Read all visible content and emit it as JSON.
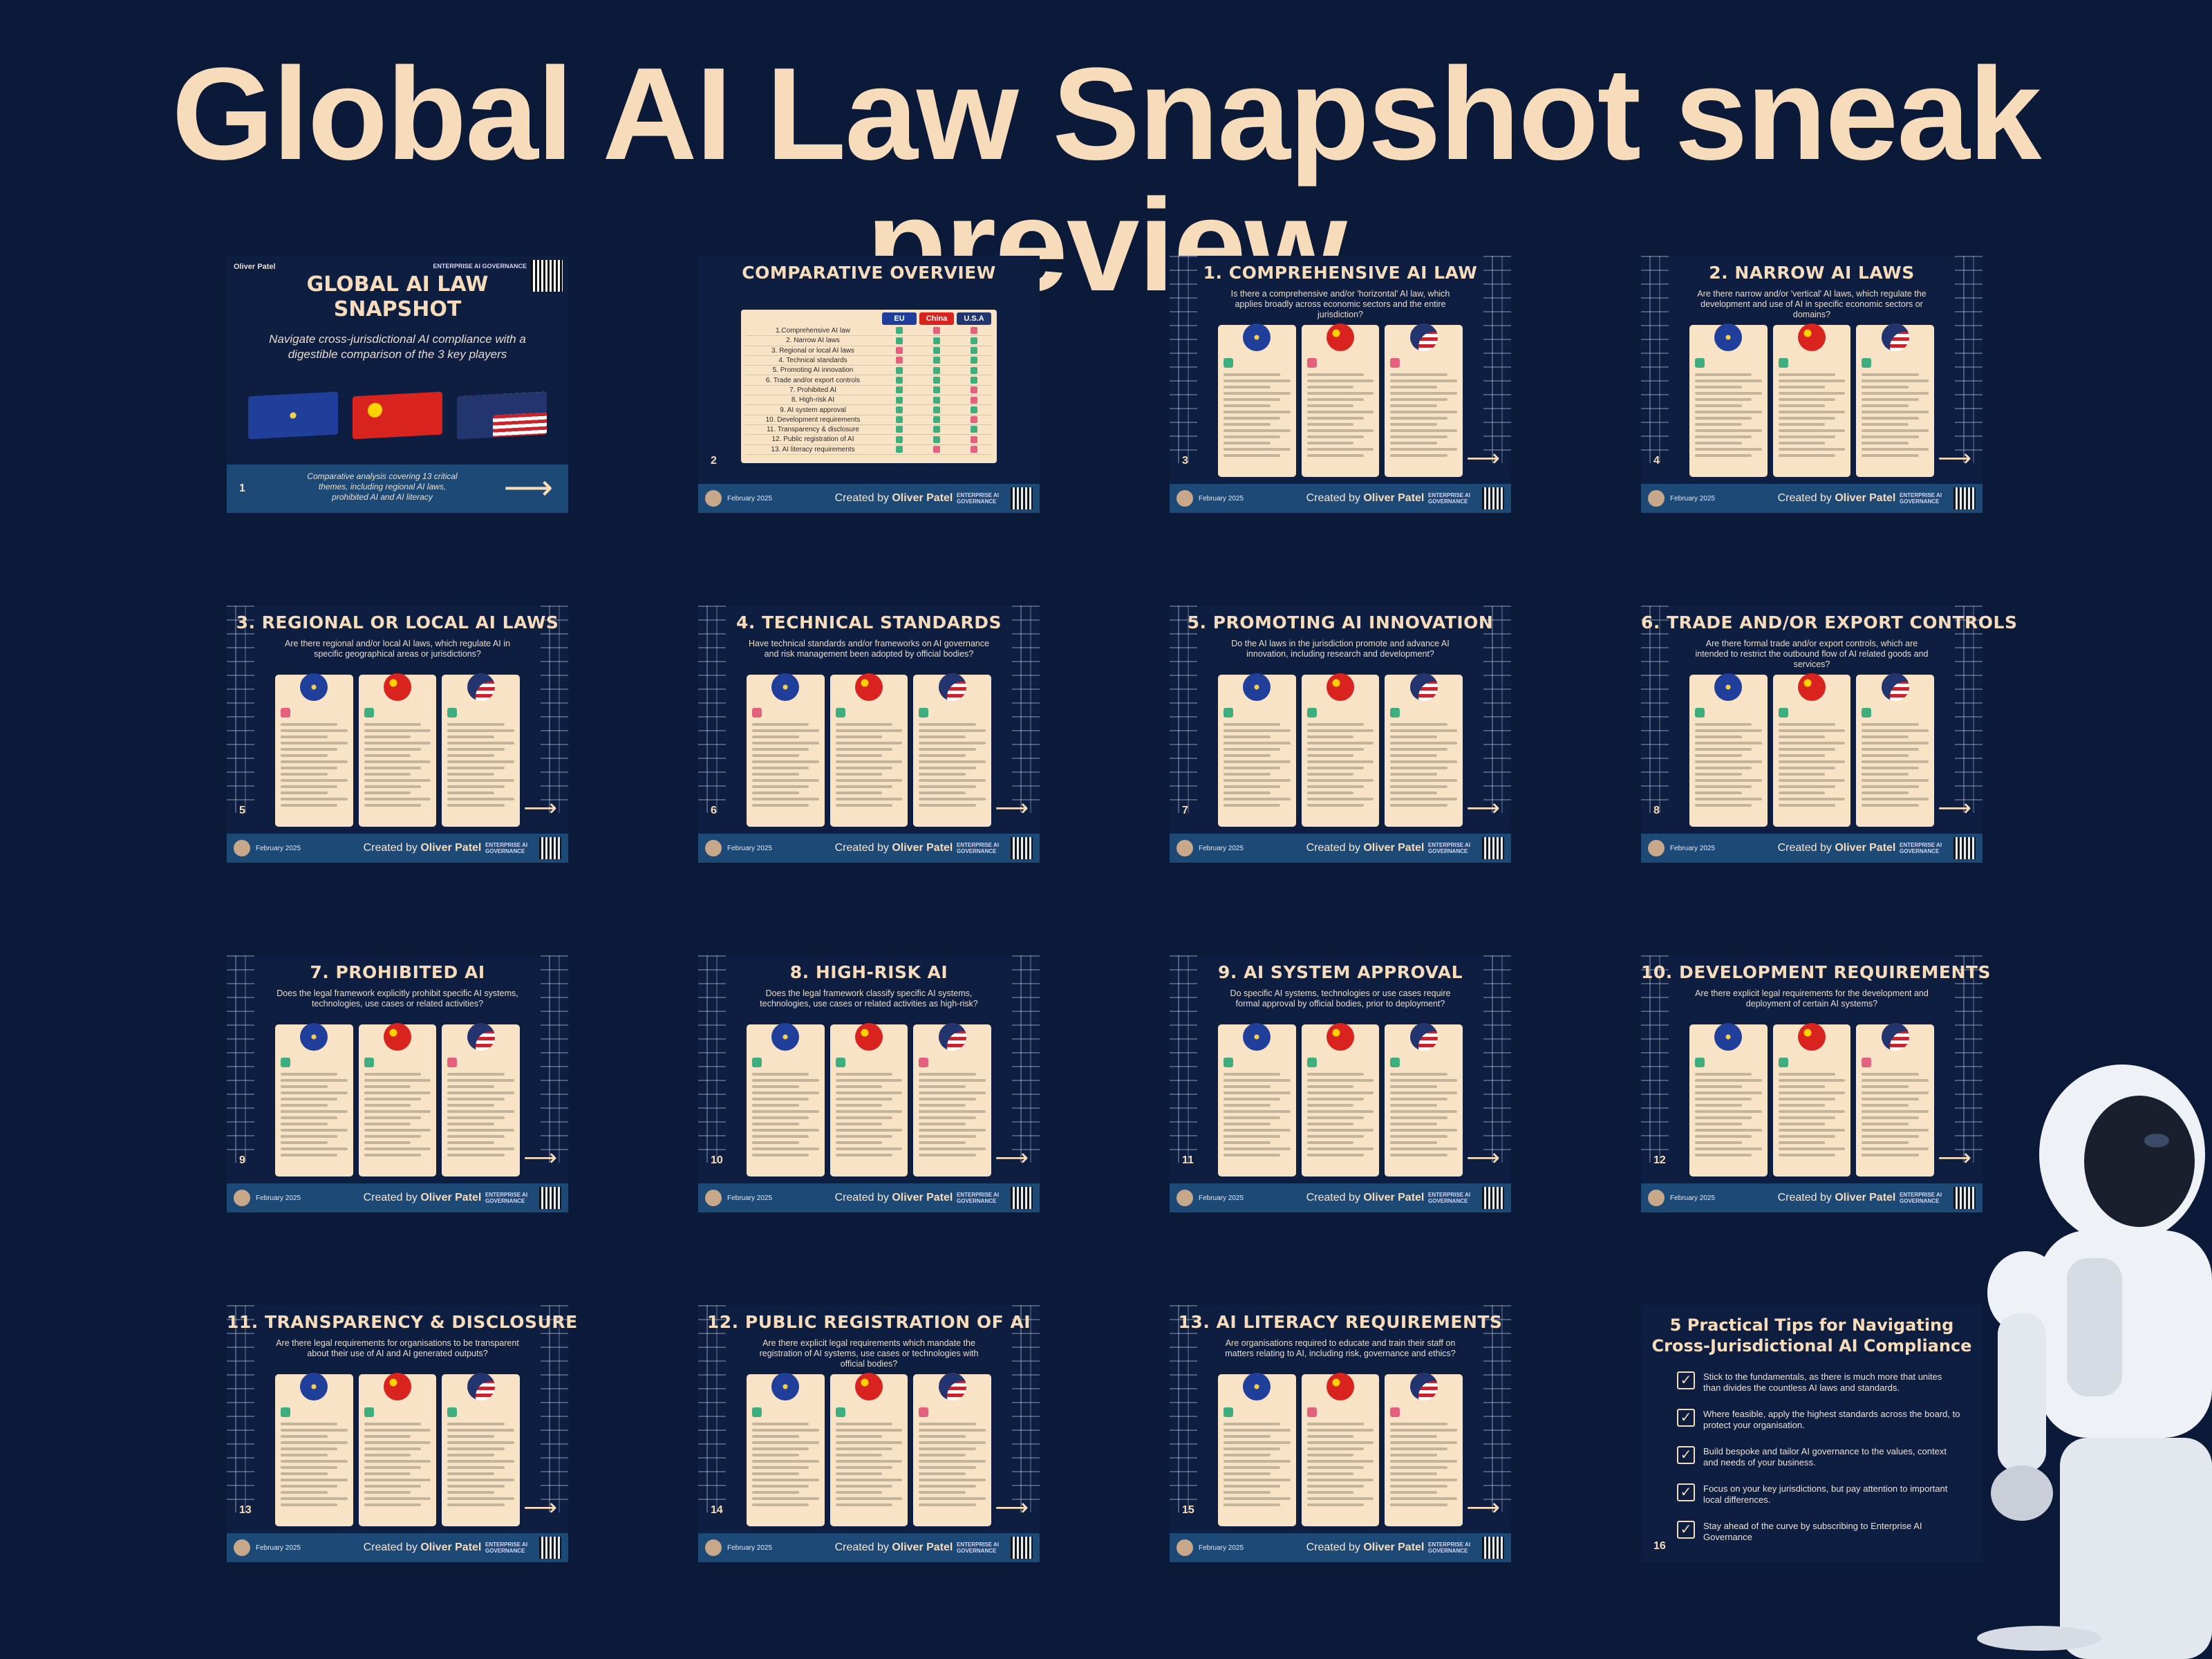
{
  "headline": "Global AI Law Snapshot sneak preview",
  "footer": {
    "date": "February 2025",
    "created_by_prefix": "Created by",
    "author": "Oliver Patel",
    "brand": "ENTERPRISE AI GOVERNANCE"
  },
  "cover": {
    "number": "1",
    "author": "Oliver Patel",
    "title_line1": "GLOBAL AI LAW",
    "title_line2": "SNAPSHOT",
    "tagline": "Navigate cross-jurisdictional AI compliance with a digestible comparison of the 3 key players",
    "bar_text": "Comparative analysis covering 13 critical themes, including regional AI laws, prohibited AI and AI literacy",
    "brand": "ENTERPRISE AI GOVERNANCE"
  },
  "overview": {
    "number": "2",
    "title": "COMPARATIVE OVERVIEW",
    "headers": [
      "EU",
      "China",
      "U.S.A"
    ],
    "rows": [
      {
        "label": "1.Comprehensive AI law",
        "marks": [
          "yes",
          "no",
          "no"
        ]
      },
      {
        "label": "2. Narrow AI laws",
        "marks": [
          "yes",
          "yes",
          "yes"
        ]
      },
      {
        "label": "3. Regional or local AI laws",
        "marks": [
          "no",
          "yes",
          "yes"
        ]
      },
      {
        "label": "4. Technical standards",
        "marks": [
          "no",
          "yes",
          "yes"
        ]
      },
      {
        "label": "5. Promoting AI innovation",
        "marks": [
          "yes",
          "yes",
          "yes"
        ]
      },
      {
        "label": "6. Trade and/or export controls",
        "marks": [
          "yes",
          "yes",
          "yes"
        ]
      },
      {
        "label": "7. Prohibited AI",
        "marks": [
          "yes",
          "yes",
          "no"
        ]
      },
      {
        "label": "8. High-risk AI",
        "marks": [
          "yes",
          "yes",
          "no"
        ]
      },
      {
        "label": "9. AI system approval",
        "marks": [
          "yes",
          "yes",
          "yes"
        ]
      },
      {
        "label": "10. Development requirements",
        "marks": [
          "yes",
          "yes",
          "no"
        ]
      },
      {
        "label": "11. Transparency & disclosure",
        "marks": [
          "yes",
          "yes",
          "yes"
        ]
      },
      {
        "label": "12. Public registration of AI",
        "marks": [
          "yes",
          "yes",
          "no"
        ]
      },
      {
        "label": "13. AI literacy requirements",
        "marks": [
          "yes",
          "no",
          "no"
        ]
      }
    ]
  },
  "cards": [
    {
      "number": "3",
      "title": "1. COMPREHENSIVE AI LAW",
      "subtitle": "Is there a comprehensive and/or 'horizontal' AI law, which applies broadly across economic sectors and the entire jurisdiction?",
      "marks": [
        "yes",
        "no",
        "no"
      ]
    },
    {
      "number": "4",
      "title": "2. NARROW AI LAWS",
      "subtitle": "Are there narrow and/or 'vertical' AI laws, which regulate the development and use of AI in specific economic sectors or domains?",
      "marks": [
        "yes",
        "yes",
        "yes"
      ]
    },
    {
      "number": "5",
      "title": "3. REGIONAL OR LOCAL AI LAWS",
      "subtitle": "Are there regional and/or local AI laws, which regulate AI in specific geographical areas or jurisdictions?",
      "marks": [
        "no",
        "yes",
        "yes"
      ]
    },
    {
      "number": "6",
      "title": "4. TECHNICAL STANDARDS",
      "subtitle": "Have technical standards and/or frameworks on AI governance and risk management been adopted by official bodies?",
      "marks": [
        "no",
        "yes",
        "yes"
      ]
    },
    {
      "number": "7",
      "title": "5. PROMOTING AI INNOVATION",
      "subtitle": "Do the AI laws in the jurisdiction promote and advance AI innovation, including research and development?",
      "marks": [
        "yes",
        "yes",
        "yes"
      ]
    },
    {
      "number": "8",
      "title": "6. TRADE AND/OR EXPORT CONTROLS",
      "subtitle": "Are there formal trade and/or export controls, which are intended to restrict the outbound flow of AI related goods and services?",
      "marks": [
        "yes",
        "yes",
        "yes"
      ]
    },
    {
      "number": "9",
      "title": "7. PROHIBITED AI",
      "subtitle": "Does the legal framework explicitly prohibit specific AI systems, technologies, use cases or related activities?",
      "marks": [
        "yes",
        "yes",
        "no"
      ]
    },
    {
      "number": "10",
      "title": "8. HIGH-RISK AI",
      "subtitle": "Does the legal framework classify specific AI systems, technologies, use cases or related activities as high-risk?",
      "marks": [
        "yes",
        "yes",
        "no"
      ]
    },
    {
      "number": "11",
      "title": "9. AI SYSTEM APPROVAL",
      "subtitle": "Do specific AI systems, technologies or use cases require formal approval by official bodies, prior to deployment?",
      "marks": [
        "yes",
        "yes",
        "yes"
      ]
    },
    {
      "number": "12",
      "title": "10. DEVELOPMENT REQUIREMENTS",
      "subtitle": "Are there explicit legal requirements for the development and deployment of certain AI systems?",
      "marks": [
        "yes",
        "yes",
        "no"
      ]
    },
    {
      "number": "13",
      "title": "11. TRANSPARENCY & DISCLOSURE",
      "subtitle": "Are there legal requirements for organisations to be transparent about their use of AI and AI generated outputs?",
      "marks": [
        "yes",
        "yes",
        "yes"
      ]
    },
    {
      "number": "14",
      "title": "12. PUBLIC REGISTRATION OF AI",
      "subtitle": "Are there explicit legal requirements which mandate the registration of AI systems, use cases or technologies with official bodies?",
      "marks": [
        "yes",
        "yes",
        "no"
      ]
    },
    {
      "number": "15",
      "title": "13. AI LITERACY REQUIREMENTS",
      "subtitle": "Are organisations required to educate and train their staff on matters relating to AI, including risk, governance and ethics?",
      "marks": [
        "yes",
        "no",
        "no"
      ]
    }
  ],
  "tips": {
    "number": "16",
    "title_line1": "5 Practical Tips for Navigating",
    "title_line2": "Cross-Jurisdictional AI Compliance",
    "items": [
      "Stick to the fundamentals, as there is much more that unites than divides the countless AI laws and standards.",
      "Where feasible, apply the highest standards across the board, to protect your organisation.",
      "Build bespoke and tailor AI governance to the values, context and needs of your business.",
      "Focus on your key jurisdictions, but pay attention to important local differences.",
      "Stay ahead of the curve by subscribing to Enterprise AI Governance"
    ]
  },
  "colors": {
    "background": "#0b1a38",
    "headline": "#f7dcbc",
    "card_panel": "#f8e3c6",
    "footer_bar": "#1d4977",
    "yes": "#3fae7e",
    "no": "#e3607e"
  }
}
